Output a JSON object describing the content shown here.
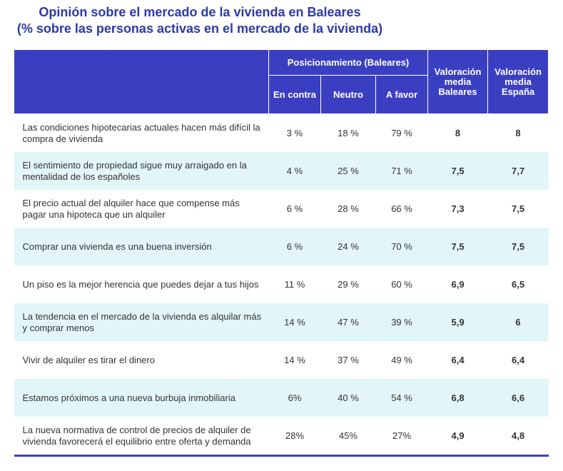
{
  "title": "Opinión sobre el mercado de la vivienda en Baleares",
  "subtitle": "(% sobre las personas activas en el mercado de la vivienda)",
  "header": {
    "group": "Posicionamiento (Baleares)",
    "en_contra": "En contra",
    "neutro": "Neutro",
    "a_favor": "A favor",
    "val_baleares": [
      "Valoración",
      "media",
      "Baleares"
    ],
    "val_espana": [
      "Valoración",
      "media",
      "España"
    ]
  },
  "chart_data": {
    "type": "table",
    "title": "Opinión sobre el mercado de la vivienda en Baleares",
    "subtitle": "(% sobre las personas activas en el mercado de la vivienda)",
    "columns": [
      "En contra",
      "Neutro",
      "A favor",
      "Valoración media Baleares",
      "Valoración media España"
    ],
    "rows": [
      {
        "statement": "Las condiciones hipotecarias actuales hacen más difícil la compra de vivienda",
        "en_contra": "3 %",
        "neutro": "18 %",
        "a_favor": "79 %",
        "baleares": "8",
        "espana": "8"
      },
      {
        "statement": "El sentimiento de propiedad sigue muy arraigado en la mentalidad de los españoles",
        "en_contra": "4 %",
        "neutro": "25 %",
        "a_favor": "71 %",
        "baleares": "7,5",
        "espana": "7,7"
      },
      {
        "statement": "El precio actual del alquiler hace que compense más pagar una hipoteca que un alquiler",
        "en_contra": "6 %",
        "neutro": "28 %",
        "a_favor": "66 %",
        "baleares": "7,3",
        "espana": "7,5"
      },
      {
        "statement": "Comprar una vivienda es una buena inversión",
        "en_contra": "6 %",
        "neutro": "24 %",
        "a_favor": "70 %",
        "baleares": "7,5",
        "espana": "7,5"
      },
      {
        "statement": "Un piso es la mejor herencia que puedes dejar a tus hijos",
        "en_contra": "11 %",
        "neutro": "29 %",
        "a_favor": "60 %",
        "baleares": "6,9",
        "espana": "6,5"
      },
      {
        "statement": "La tendencia en el mercado de la vivienda es alquilar más y comprar menos",
        "en_contra": "14 %",
        "neutro": "47 %",
        "a_favor": "39 %",
        "baleares": "5,9",
        "espana": "6"
      },
      {
        "statement": "Vivir de alquiler es tirar el dinero",
        "en_contra": "14 %",
        "neutro": "37 %",
        "a_favor": "49 %",
        "baleares": "6,4",
        "espana": "6,4"
      },
      {
        "statement": "Estamos próximos a una nueva burbuja inmobiliaria",
        "en_contra": "6%",
        "neutro": "40 %",
        "a_favor": "54 %",
        "baleares": "6,8",
        "espana": "6,6"
      },
      {
        "statement": "La nueva normativa de control de precios de alquiler de vivienda favorecerá el equilibrio entre oferta y demanda",
        "en_contra": "28%",
        "neutro": "45%",
        "a_favor": "27%",
        "baleares": "4,9",
        "espana": "4,8"
      }
    ]
  },
  "colors": {
    "title": "#2b3aa8",
    "header_bg": "#3a3fc2",
    "row_alt_bg": "#e3f6f7",
    "row_bg": "#ffffff"
  }
}
